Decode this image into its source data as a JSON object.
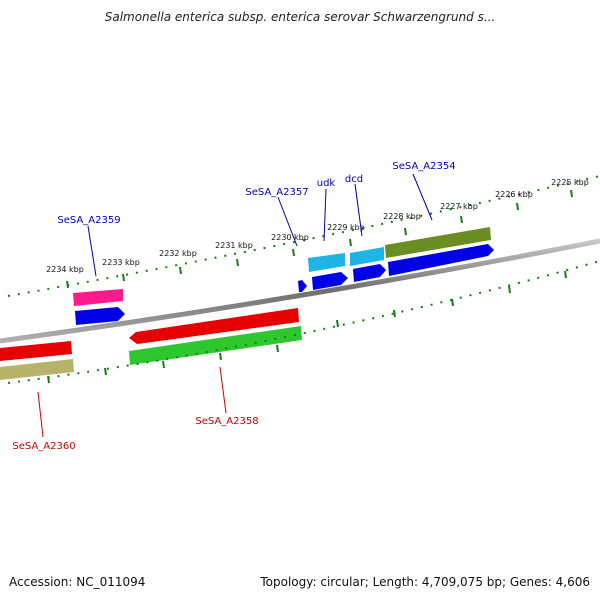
{
  "title": "Salmonella enterica subsp. enterica serovar Schwarzengrund s...",
  "ruler": {
    "ticks": [
      "2225 kbp",
      "2226 kbp",
      "2227 kbp",
      "2228 kbp",
      "2229 kbp",
      "2230 kbp",
      "2231 kbp",
      "2232 kbp",
      "2233 kbp",
      "2234 kbp"
    ]
  },
  "genes": {
    "forward": [
      {
        "name": "SeSA_A2354",
        "color": "#6b8e23"
      },
      {
        "name": "dcd",
        "color": "#1eb4e6"
      },
      {
        "name": "udk",
        "color": "#1eb4e6"
      },
      {
        "name": "SeSA_A2357",
        "color": "#1a1aff"
      },
      {
        "name": "SeSA_A2359",
        "color": "#ff1a8c"
      }
    ],
    "reverse": [
      {
        "name": "SeSA_A2358",
        "color": "#e60000"
      },
      {
        "name": "SeSA_A2360",
        "color": "#e60000"
      }
    ],
    "colors": {
      "cds_blue": "#0000e6",
      "cds_green": "#2ec82e",
      "cds_olive": "#b7b36a",
      "forward_label": "#0000aa",
      "reverse_label": "#cc0000",
      "tick": "#1a7a1a",
      "backbone": "#8c8c8c"
    }
  },
  "footer": {
    "accession": "Accession: NC_011094",
    "stats": "Topology: circular; Length: 4,709,075 bp; Genes: 4,606"
  }
}
